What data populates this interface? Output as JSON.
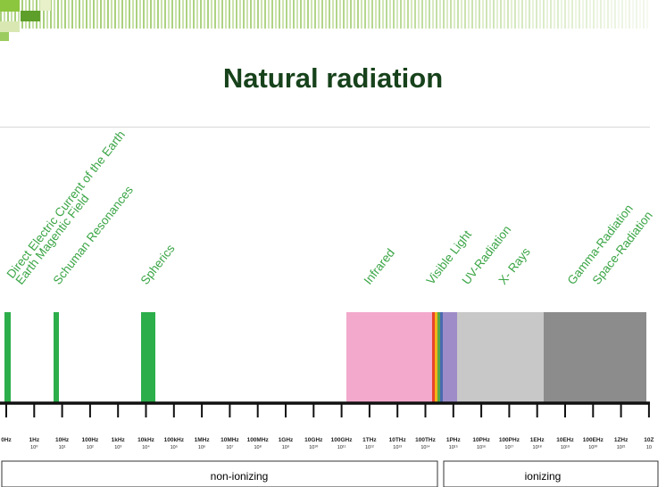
{
  "title": "Natural radiation",
  "band_labels": [
    "Direct Electric Current of the Earth",
    "Earth Magentic Field",
    "Schuman Resonances",
    "Spherics",
    "Infrared",
    "Visible Light",
    "UV-Radiation",
    "X- Rays",
    "Gamma-Radiation",
    "Space-Radiation"
  ],
  "tick_labels": [
    {
      "freq": "0Hz",
      "exp": ""
    },
    {
      "freq": "1Hz",
      "exp": "10⁰"
    },
    {
      "freq": "10Hz",
      "exp": "10¹"
    },
    {
      "freq": "100Hz",
      "exp": "10²"
    },
    {
      "freq": "1kHz",
      "exp": "10³"
    },
    {
      "freq": "10kHz",
      "exp": "10⁴"
    },
    {
      "freq": "100kHz",
      "exp": "10⁵"
    },
    {
      "freq": "1MHz",
      "exp": "10⁶"
    },
    {
      "freq": "10MHz",
      "exp": "10⁷"
    },
    {
      "freq": "100MHz",
      "exp": "10⁸"
    },
    {
      "freq": "1GHz",
      "exp": "10⁹"
    },
    {
      "freq": "10GHz",
      "exp": "10¹⁰"
    },
    {
      "freq": "100GHz",
      "exp": "10¹¹"
    },
    {
      "freq": "1THz",
      "exp": "10¹²"
    },
    {
      "freq": "10THz",
      "exp": "10¹³"
    },
    {
      "freq": "100THz",
      "exp": "10¹⁴"
    },
    {
      "freq": "1PHz",
      "exp": "10¹⁵"
    },
    {
      "freq": "10PHz",
      "exp": "10¹⁶"
    },
    {
      "freq": "100PHz",
      "exp": "10¹⁷"
    },
    {
      "freq": "1EHz",
      "exp": "10¹⁸"
    },
    {
      "freq": "10EHz",
      "exp": "10¹⁹"
    },
    {
      "freq": "100EHz",
      "exp": "10²⁰"
    },
    {
      "freq": "1ZHz",
      "exp": "10²¹"
    },
    {
      "freq": "10Z",
      "exp": "10"
    }
  ],
  "classes": {
    "non_ionizing": "non-ionizing",
    "ionizing": "ionizing"
  },
  "colors": {
    "title": "#17421b",
    "label_green": "#3aa545",
    "green_bar": "#2cae4a",
    "infrared": "#f2a9cc",
    "uv": "#9e8cc8",
    "xray": "#c8c8c8",
    "gamma": "#8c8c8c"
  }
}
